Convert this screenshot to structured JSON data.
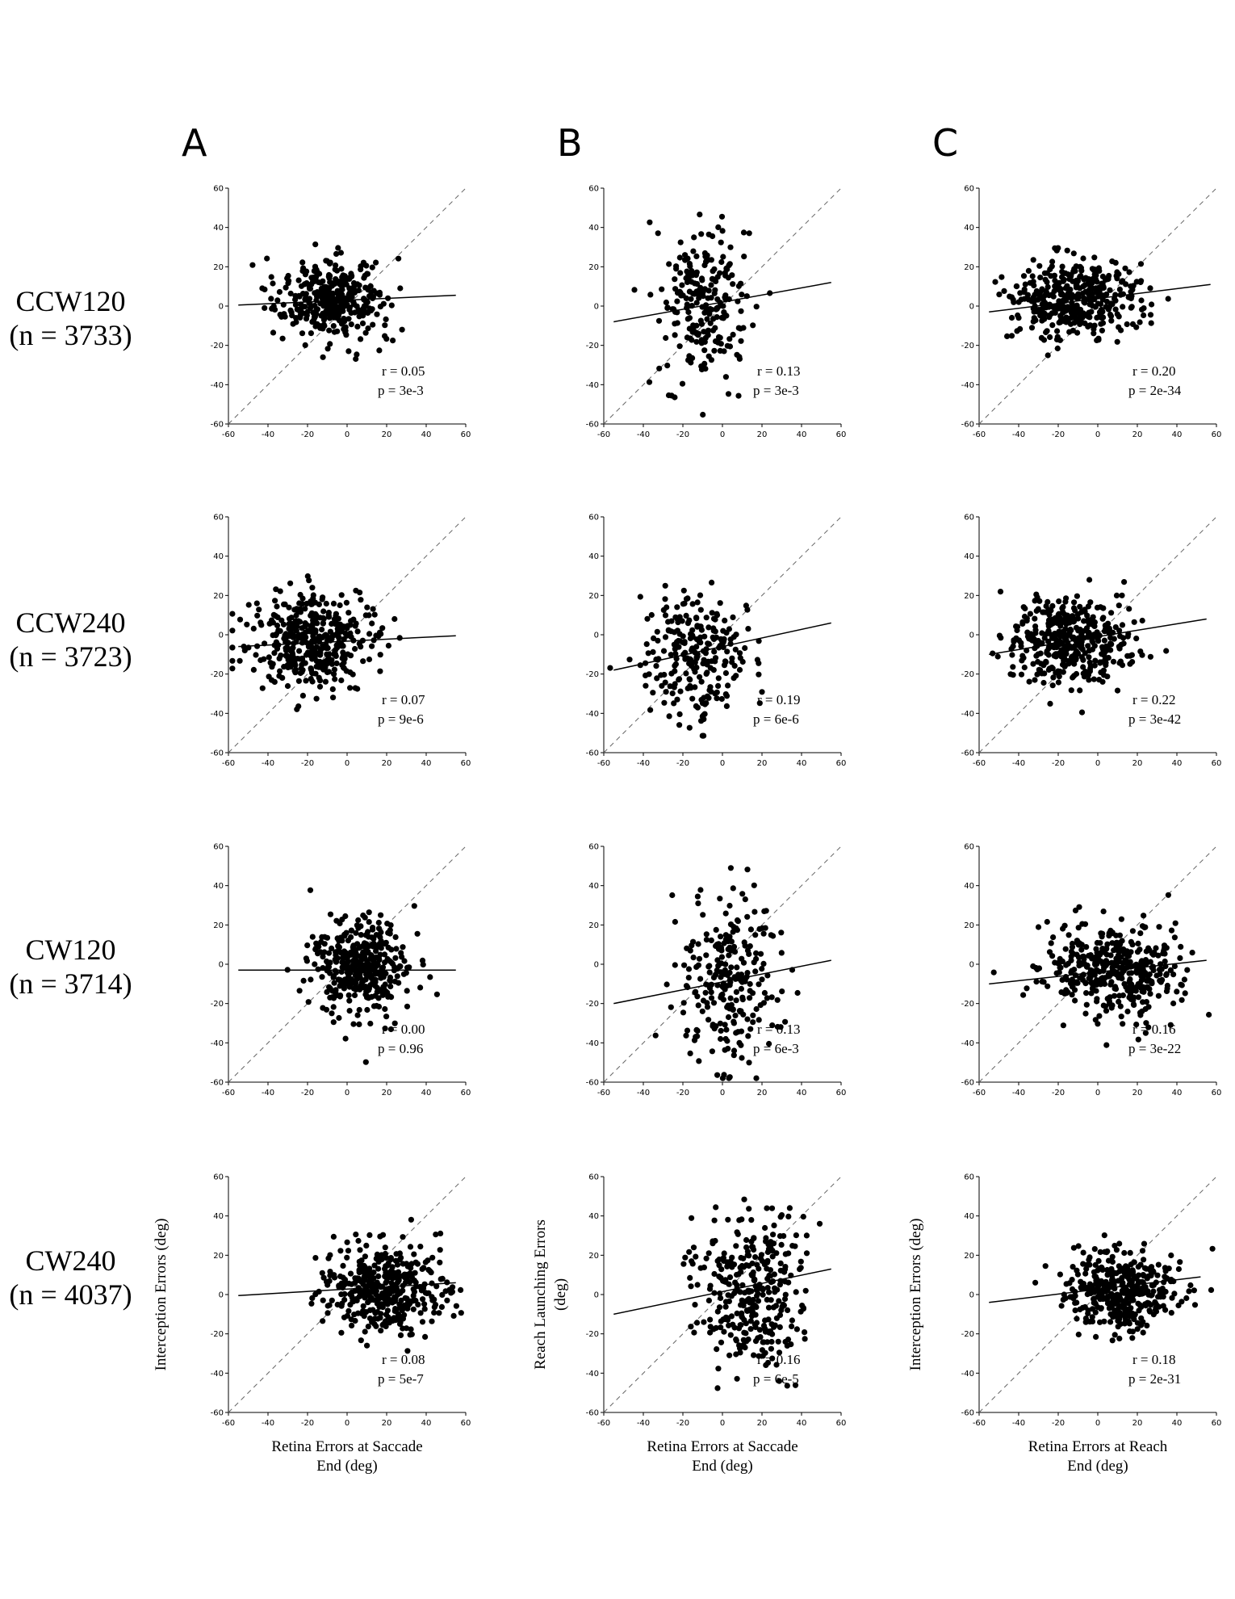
{
  "column_letters": [
    "A",
    "B",
    "C"
  ],
  "rows": [
    {
      "name": "CCW120",
      "n": "(n = 3733)"
    },
    {
      "name": "CCW240",
      "n": "(n = 3723)"
    },
    {
      "name": "CW120",
      "n": "(n = 3714)"
    },
    {
      "name": "CW240",
      "n": "(n = 4037)"
    }
  ],
  "chart_data": [
    {
      "type": "scatter",
      "panel": "CCW120-A",
      "r": "r = 0.05",
      "p": "p = 3e-3",
      "fit": {
        "x": [
          -55,
          55
        ],
        "y": [
          0.5,
          5.5
        ]
      },
      "cloud": {
        "cx": -8,
        "cy": 3,
        "sx": 13,
        "sy": 10,
        "n": 380
      },
      "xlim": [
        -60,
        60
      ],
      "ylim": [
        -60,
        60
      ],
      "dashed_identity": true
    },
    {
      "type": "scatter",
      "panel": "CCW120-B",
      "r": "r = 0.13",
      "p": "p = 3e-3",
      "fit": {
        "x": [
          -55,
          55
        ],
        "y": [
          -8,
          12
        ]
      },
      "cloud": {
        "cx": -8,
        "cy": 1,
        "sx": 11,
        "sy": 19,
        "n": 230
      },
      "xlim": [
        -60,
        60
      ],
      "ylim": [
        -60,
        60
      ],
      "dashed_identity": true
    },
    {
      "type": "scatter",
      "panel": "CCW120-C",
      "r": "r = 0.20",
      "p": "p = 2e-34",
      "fit": {
        "x": [
          -55,
          57
        ],
        "y": [
          -3,
          11
        ]
      },
      "cloud": {
        "cx": -12,
        "cy": 3,
        "sx": 17,
        "sy": 10,
        "n": 400
      },
      "xlim": [
        -60,
        60
      ],
      "ylim": [
        -60,
        60
      ],
      "dashed_identity": true
    },
    {
      "type": "scatter",
      "panel": "CCW240-A",
      "r": "r = 0.07",
      "p": "p = 9e-6",
      "fit": {
        "x": [
          -55,
          55
        ],
        "y": [
          -6,
          -0.5
        ]
      },
      "cloud": {
        "cx": -18,
        "cy": -4,
        "sx": 16,
        "sy": 11,
        "n": 400
      },
      "xlim": [
        -60,
        60
      ],
      "ylim": [
        -60,
        60
      ],
      "dashed_identity": true
    },
    {
      "type": "scatter",
      "panel": "CCW240-B",
      "r": "r = 0.19",
      "p": "p = 6e-6",
      "fit": {
        "x": [
          -55,
          55
        ],
        "y": [
          -18,
          6
        ]
      },
      "cloud": {
        "cx": -15,
        "cy": -10,
        "sx": 14,
        "sy": 16,
        "n": 250
      },
      "xlim": [
        -60,
        60
      ],
      "ylim": [
        -60,
        60
      ],
      "dashed_identity": true
    },
    {
      "type": "scatter",
      "panel": "CCW240-C",
      "r": "r = 0.22",
      "p": "p = 3e-42",
      "fit": {
        "x": [
          -55,
          55
        ],
        "y": [
          -10,
          8
        ]
      },
      "cloud": {
        "cx": -14,
        "cy": -4,
        "sx": 16,
        "sy": 11,
        "n": 400
      },
      "xlim": [
        -60,
        60
      ],
      "ylim": [
        -60,
        60
      ],
      "dashed_identity": true
    },
    {
      "type": "scatter",
      "panel": "CW120-A",
      "r": "r = 0.00",
      "p": "p = 0.96",
      "fit": {
        "x": [
          -55,
          55
        ],
        "y": [
          -3,
          -3
        ]
      },
      "cloud": {
        "cx": 7,
        "cy": 0,
        "sx": 12,
        "sy": 12,
        "n": 380
      },
      "xlim": [
        -60,
        60
      ],
      "ylim": [
        -60,
        60
      ],
      "dashed_identity": true
    },
    {
      "type": "scatter",
      "panel": "CW120-B",
      "r": "r = 0.13",
      "p": "p = 6e-3",
      "fit": {
        "x": [
          -55,
          55
        ],
        "y": [
          -20,
          2
        ]
      },
      "cloud": {
        "cx": 3,
        "cy": -8,
        "sx": 12,
        "sy": 20,
        "n": 250
      },
      "xlim": [
        -60,
        60
      ],
      "ylim": [
        -60,
        60
      ],
      "dashed_identity": true
    },
    {
      "type": "scatter",
      "panel": "CW120-C",
      "r": "r = 0.16",
      "p": "p = 3e-22",
      "fit": {
        "x": [
          -55,
          55
        ],
        "y": [
          -10,
          2
        ]
      },
      "cloud": {
        "cx": 8,
        "cy": -2,
        "sx": 17,
        "sy": 12,
        "n": 400
      },
      "xlim": [
        -60,
        60
      ],
      "ylim": [
        -60,
        60
      ],
      "dashed_identity": true
    },
    {
      "type": "scatter",
      "panel": "CW240-A",
      "r": "r = 0.08",
      "p": "p = 5e-7",
      "fit": {
        "x": [
          -55,
          55
        ],
        "y": [
          -0.5,
          6
        ]
      },
      "cloud": {
        "cx": 18,
        "cy": 3,
        "sx": 15,
        "sy": 11,
        "n": 400
      },
      "xlim": [
        -60,
        60
      ],
      "ylim": [
        -60,
        60
      ],
      "dashed_identity": true
    },
    {
      "type": "scatter",
      "panel": "CW240-B",
      "r": "r = 0.16",
      "p": "p = 6e-5",
      "fit": {
        "x": [
          -55,
          55
        ],
        "y": [
          -10,
          13
        ]
      },
      "cloud": {
        "cx": 15,
        "cy": 2,
        "sx": 14,
        "sy": 20,
        "n": 330
      },
      "xlim": [
        -60,
        60
      ],
      "ylim": [
        -60,
        60
      ],
      "dashed_identity": true,
      "ylabel": [
        "Reach Launching Errors",
        "(deg)"
      ],
      "xlabel": [
        "Retina Errors at Saccade",
        "End (deg)"
      ]
    },
    {
      "type": "scatter",
      "panel": "CW240-C",
      "r": "r = 0.18",
      "p": "p = 2e-31",
      "fit": {
        "x": [
          -55,
          52
        ],
        "y": [
          -4,
          9
        ]
      },
      "cloud": {
        "cx": 12,
        "cy": 2,
        "sx": 14,
        "sy": 10,
        "n": 400
      },
      "xlim": [
        -60,
        60
      ],
      "ylim": [
        -60,
        60
      ],
      "dashed_identity": true
    }
  ],
  "axis_labels": {
    "a_y": "Interception Errors (deg)",
    "a_x": [
      "Retina Errors at Saccade",
      "End (deg)"
    ],
    "c_y": "Interception Errors (deg)",
    "c_x": [
      "Retina Errors at Reach",
      "End (deg)"
    ]
  },
  "ticks": [
    -60,
    -40,
    -20,
    0,
    20,
    40,
    60
  ]
}
